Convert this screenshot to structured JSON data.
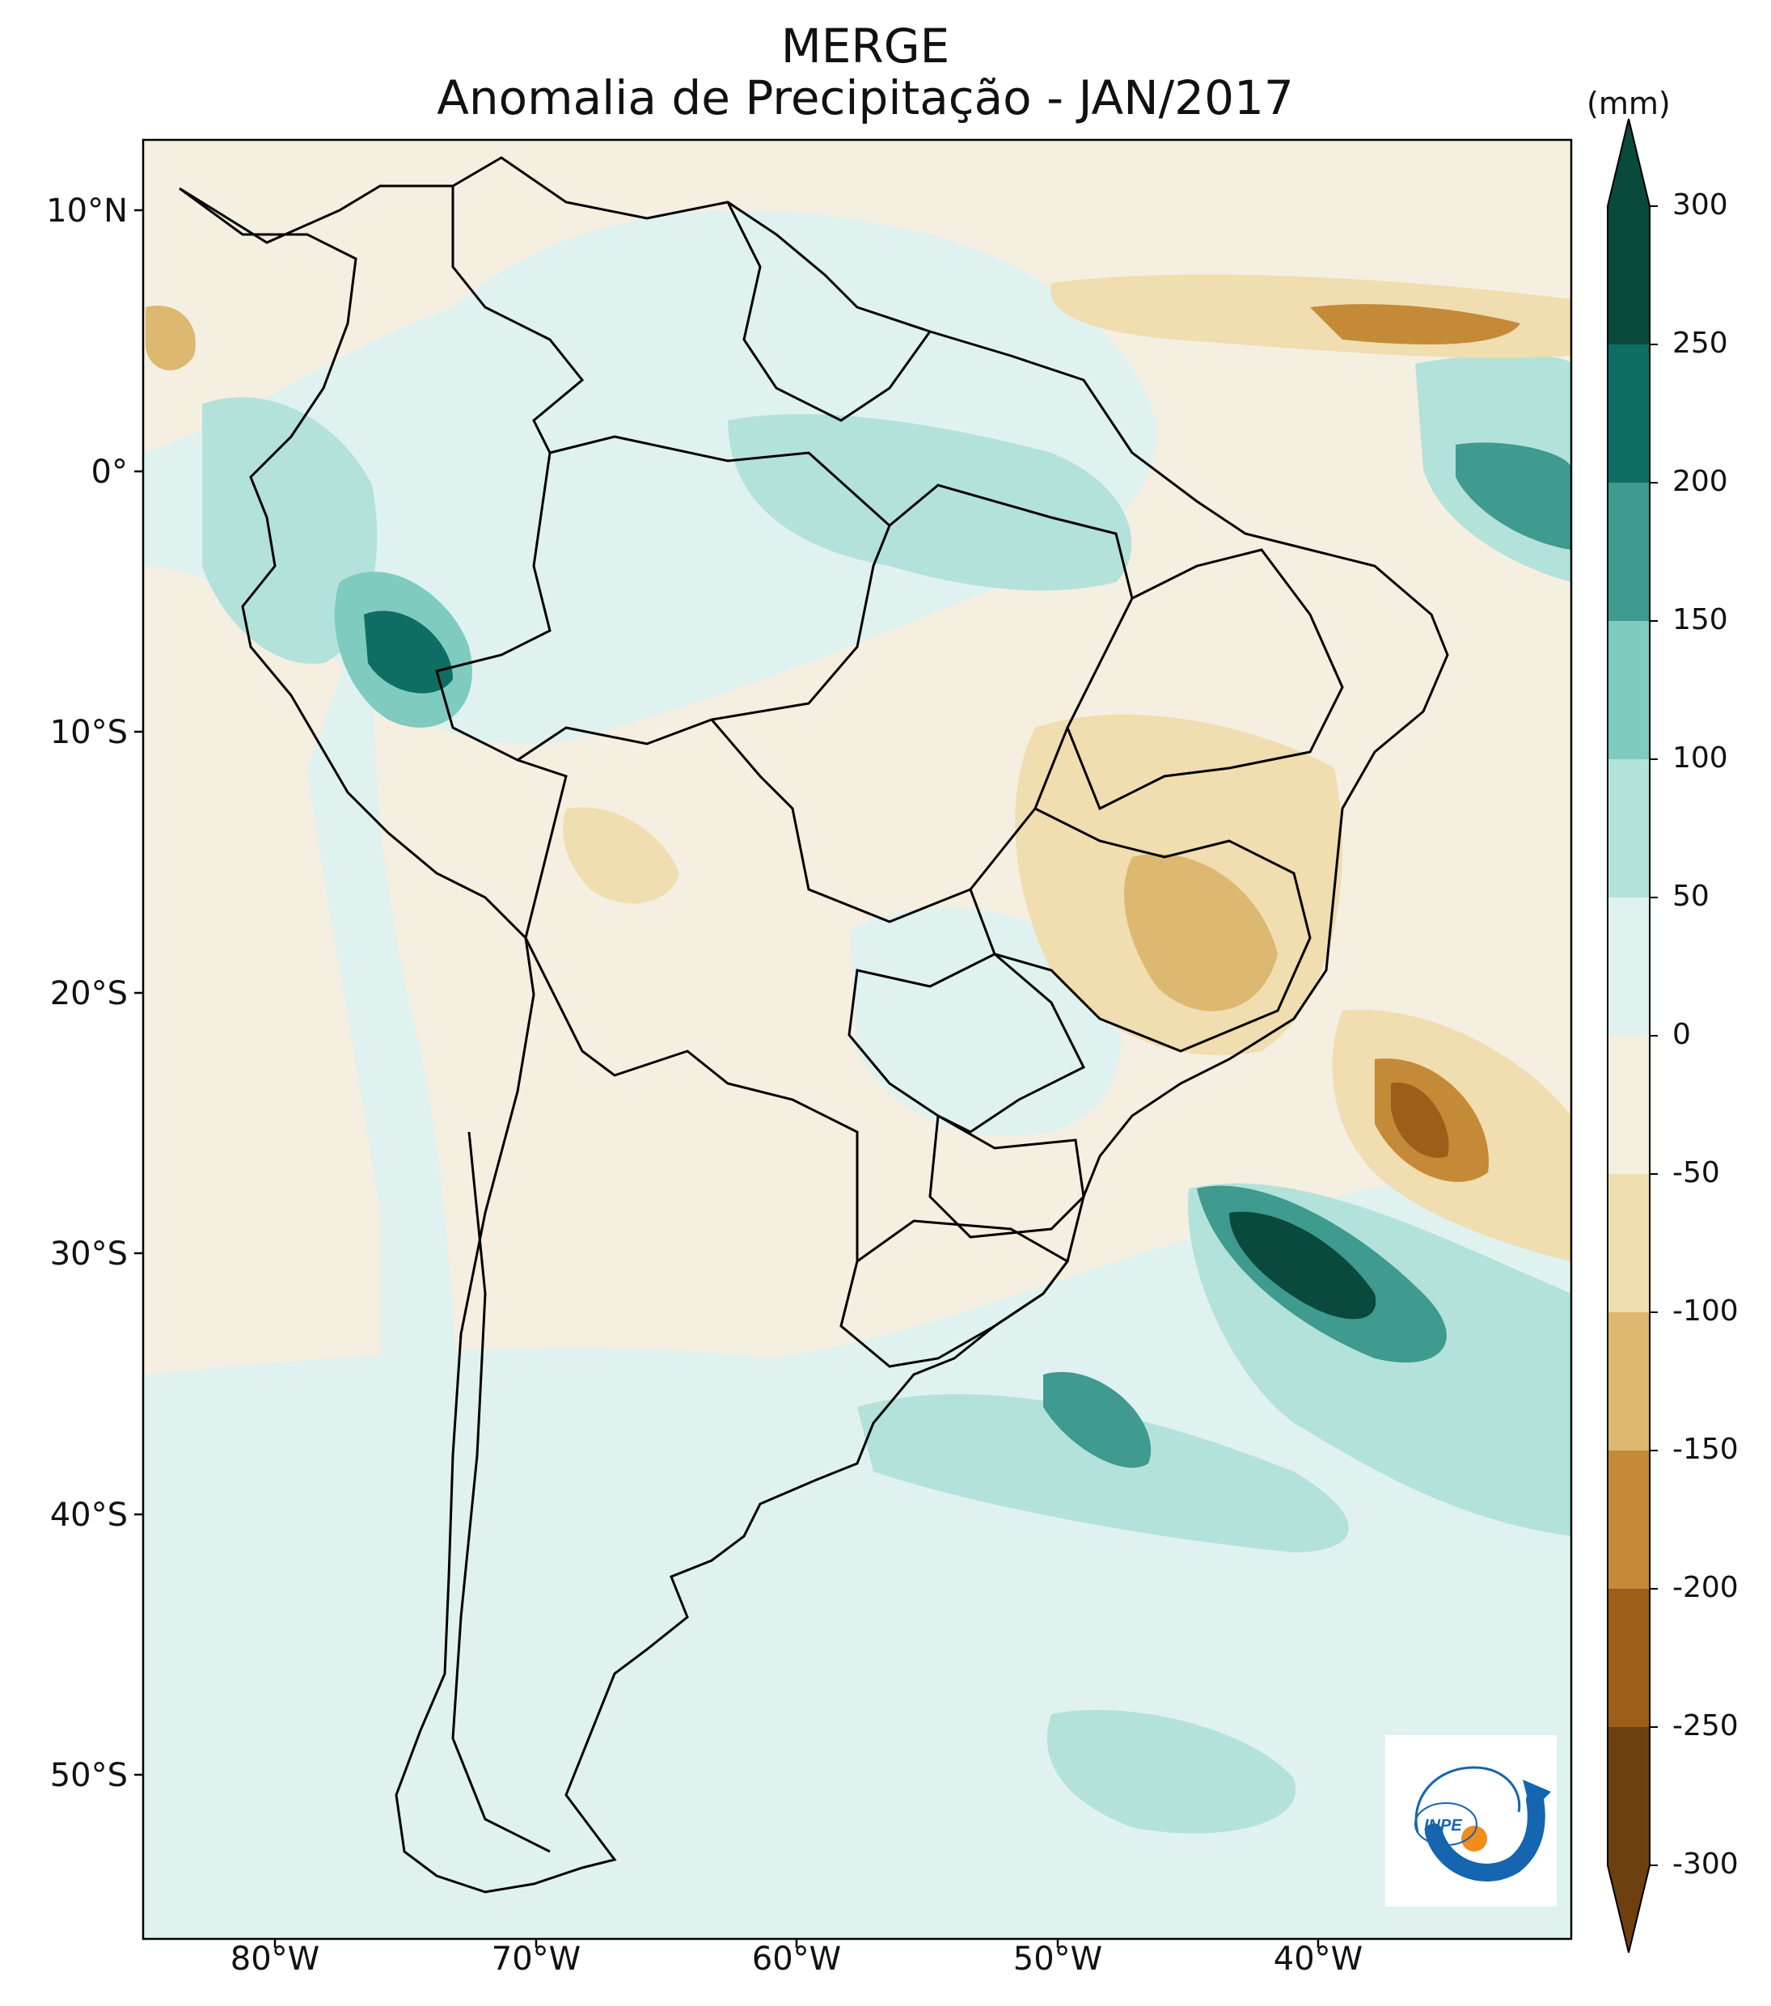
{
  "title": {
    "line1": "MERGE",
    "line2": "Anomalia de Precipitação - JAN/2017"
  },
  "colorbar": {
    "unit": "(mm)",
    "levels": [
      300,
      250,
      200,
      150,
      100,
      50,
      0,
      -50,
      -100,
      -150,
      -200,
      -250,
      -300
    ],
    "labels": [
      "300",
      "250",
      "200",
      "150",
      "100",
      "50",
      "0",
      "-50",
      "-100",
      "-150",
      "-200",
      "-250",
      "-300"
    ],
    "colors": [
      "#0a4a3c",
      "#0e6e64",
      "#3f9a8f",
      "#7fcbbf",
      "#b3e2da",
      "#e0f2ef",
      "#f5efe1",
      "#f0ddb0",
      "#ddb870",
      "#c48a37",
      "#9c5e19",
      "#6f400f"
    ]
  },
  "axes": {
    "lat_labels": [
      "10°N",
      "0°",
      "10°S",
      "20°S",
      "30°S",
      "40°S",
      "50°S"
    ],
    "lon_labels": [
      "80°W",
      "70°W",
      "60°W",
      "50°W",
      "40°W"
    ]
  },
  "logo": {
    "text": "INPE"
  },
  "icons": {
    "logo": "inpe-logo-icon"
  }
}
